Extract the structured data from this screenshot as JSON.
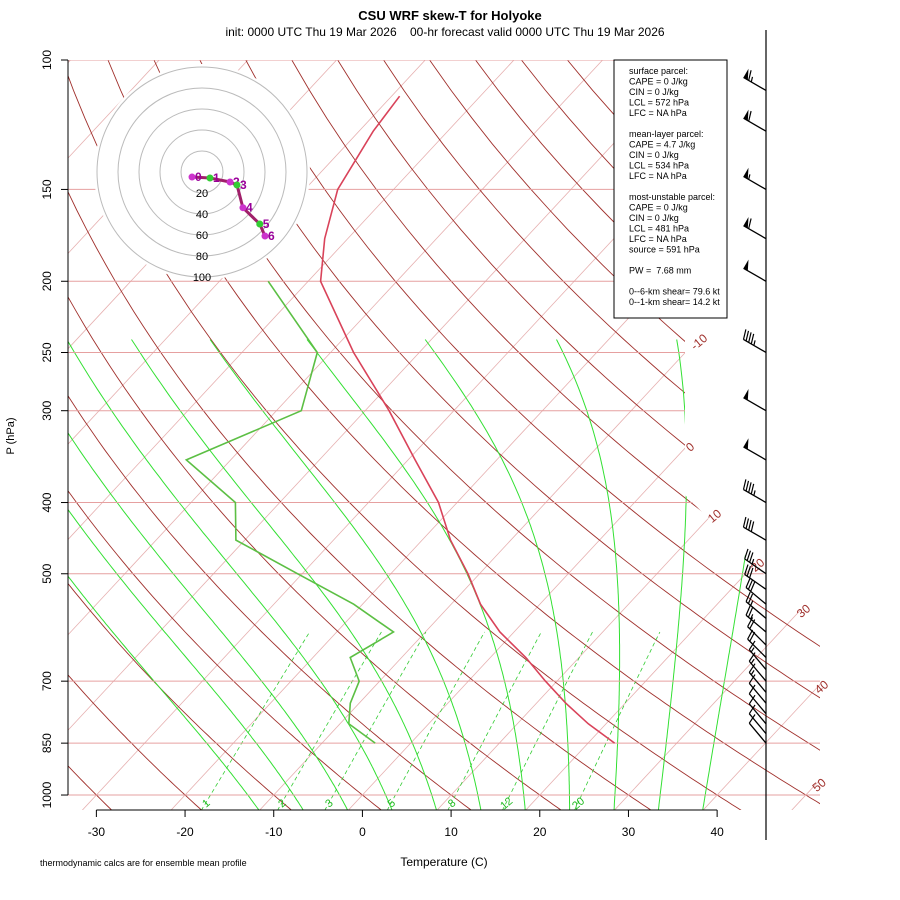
{
  "chart_data": {
    "type": "skewt",
    "title": "CSU WRF skew-T for Holyoke",
    "subtitle": "init: 0000 UTC Thu 19 Mar 2026    00-hr forecast valid 0000 UTC Thu 19 Mar 2026",
    "x_label": "Temperature (C)",
    "y_label": "P (hPa)",
    "footnote": "thermodynamic calcs are for ensemble mean profile",
    "log_y": true,
    "grid": true,
    "xlim": [
      -33.2,
      51.6
    ],
    "ylim": [
      1050,
      100
    ],
    "xticks": [
      -30,
      -20,
      -10,
      0,
      10,
      20,
      30,
      40
    ],
    "yticks": [
      100,
      150,
      200,
      250,
      300,
      400,
      500,
      700,
      850,
      1000
    ],
    "pressure": [
      850,
      800,
      750,
      700,
      650,
      600,
      550,
      500,
      450,
      400,
      350,
      300,
      250,
      200,
      175,
      150,
      125,
      112
    ],
    "series": [
      {
        "color": "#d9435a",
        "values": [
          23,
          18,
          13.3,
          8.7,
          4,
          -1.6,
          -6.7,
          -11.3,
          -16.8,
          -22.1,
          -29.2,
          -37.3,
          -47.4,
          -58.6,
          -62.6,
          -66.3,
          -68.4,
          -69.1
        ]
      },
      {
        "color": "#5cbf44",
        "values": [
          -4,
          -9,
          -11,
          -12.3,
          -15.8,
          -13.6,
          -21,
          -30.5,
          -41,
          -45,
          -55,
          -47.2,
          -51.5,
          -64.5,
          null,
          null,
          null,
          null
        ]
      }
    ],
    "isotherm_labels": [
      -10,
      0,
      10,
      20,
      30,
      40,
      50
    ],
    "mixing_ratio_labels": [
      1,
      2,
      3,
      5,
      8,
      12,
      20
    ],
    "hodograph": {
      "rings": [
        20,
        40,
        60,
        80,
        100
      ],
      "heights": [
        0,
        1,
        2,
        3,
        4,
        5,
        6
      ],
      "u": [
        -9.5,
        7.6,
        26.7,
        33.3,
        39,
        55,
        60
      ],
      "v": [
        -4.8,
        -5.7,
        -9.5,
        -12.4,
        -34,
        -49.5,
        -61
      ]
    },
    "wind_barbs": {
      "pressure": [
        110,
        125,
        150,
        175,
        200,
        250,
        300,
        350,
        400,
        450,
        500,
        525,
        550,
        575,
        600,
        625,
        650,
        675,
        700,
        725,
        750,
        775,
        800,
        825,
        850
      ],
      "speed": [
        65,
        60,
        55,
        60,
        50,
        45,
        50,
        50,
        45,
        40,
        35,
        30,
        30,
        25,
        25,
        20,
        20,
        15,
        15,
        15,
        10,
        10,
        10,
        10,
        10
      ],
      "direction": [
        300,
        300,
        300,
        300,
        300,
        300,
        300,
        300,
        300,
        300,
        305,
        305,
        310,
        310,
        310,
        315,
        315,
        320,
        320,
        320,
        320,
        320,
        320,
        320,
        320
      ]
    },
    "stats_box": [
      [
        "surface parcel:",
        "CAPE = 0 J/kg",
        "CIN = 0 J/kg",
        "LCL = 572 hPa",
        "LFC = NA hPa"
      ],
      [
        "mean-layer parcel:",
        "CAPE = 4.7 J/kg",
        "CIN = 0 J/kg",
        "LCL = 534 hPa",
        "LFC = NA hPa"
      ],
      [
        "most-unstable parcel:",
        "CAPE = 0 J/kg",
        "CIN = 0 J/kg",
        "LCL = 481 hPa",
        "LFC = NA hPa",
        "source = 591 hPa"
      ],
      [
        "PW =  7.68 mm"
      ],
      [
        "0--6-km shear= 79.6 kt",
        "0--1-km shear= 14.2 kt"
      ]
    ]
  }
}
